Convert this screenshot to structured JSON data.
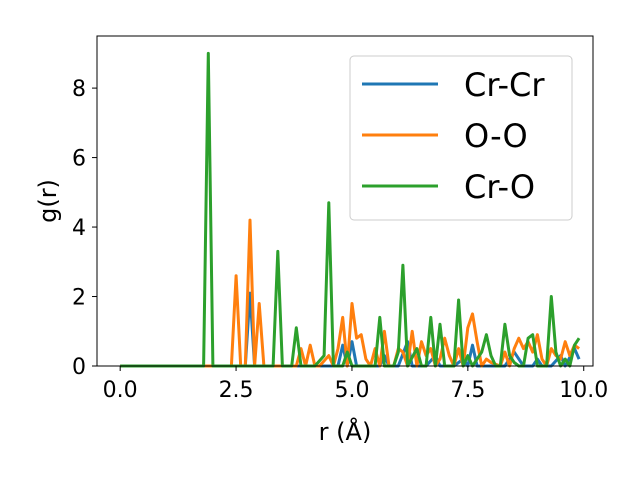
{
  "chart_data": {
    "type": "line",
    "xlabel": "r (Å)",
    "ylabel": "g(r)",
    "xlim": [
      -0.5,
      10.2
    ],
    "ylim": [
      0,
      9.5
    ],
    "xticks": [
      {
        "value": 0.0,
        "label": "0.0"
      },
      {
        "value": 2.5,
        "label": "2.5"
      },
      {
        "value": 5.0,
        "label": "5.0"
      },
      {
        "value": 7.5,
        "label": "7.5"
      },
      {
        "value": 10.0,
        "label": "10.0"
      }
    ],
    "yticks": [
      {
        "value": 0,
        "label": "0"
      },
      {
        "value": 2,
        "label": "2"
      },
      {
        "value": 4,
        "label": "4"
      },
      {
        "value": 6,
        "label": "6"
      },
      {
        "value": 8,
        "label": "8"
      }
    ],
    "grid": false,
    "legend": "top-right",
    "series": [
      {
        "name": "Cr-Cr",
        "color": "#1f77b4",
        "points": [
          [
            0.0,
            0
          ],
          [
            2.5,
            0
          ],
          [
            2.7,
            0
          ],
          [
            2.8,
            2.1
          ],
          [
            2.9,
            0
          ],
          [
            3.0,
            0
          ],
          [
            3.5,
            0
          ],
          [
            4.0,
            0
          ],
          [
            4.5,
            0
          ],
          [
            4.7,
            0
          ],
          [
            4.8,
            0.6
          ],
          [
            4.9,
            0
          ],
          [
            5.0,
            0.7
          ],
          [
            5.1,
            0
          ],
          [
            5.3,
            0
          ],
          [
            5.6,
            0
          ],
          [
            5.7,
            0.3
          ],
          [
            5.8,
            0
          ],
          [
            6.0,
            0
          ],
          [
            6.2,
            0.7
          ],
          [
            6.3,
            0
          ],
          [
            6.6,
            0
          ],
          [
            6.8,
            0.3
          ],
          [
            6.9,
            0
          ],
          [
            7.2,
            0
          ],
          [
            7.4,
            0.2
          ],
          [
            7.5,
            0
          ],
          [
            7.6,
            0.6
          ],
          [
            7.7,
            0
          ],
          [
            8.0,
            0
          ],
          [
            8.3,
            0
          ],
          [
            8.5,
            0.4
          ],
          [
            8.7,
            0
          ],
          [
            8.9,
            0
          ],
          [
            9.0,
            0.2
          ],
          [
            9.1,
            0
          ],
          [
            9.3,
            0
          ],
          [
            9.5,
            0.3
          ],
          [
            9.6,
            0
          ],
          [
            9.8,
            0.5
          ],
          [
            9.9,
            0.2
          ]
        ]
      },
      {
        "name": "O-O",
        "color": "#ff7f0e",
        "points": [
          [
            0.0,
            0
          ],
          [
            2.3,
            0
          ],
          [
            2.4,
            0
          ],
          [
            2.5,
            2.6
          ],
          [
            2.6,
            0
          ],
          [
            2.7,
            0
          ],
          [
            2.8,
            4.2
          ],
          [
            2.9,
            0
          ],
          [
            3.0,
            1.8
          ],
          [
            3.1,
            0
          ],
          [
            3.5,
            0
          ],
          [
            3.8,
            0
          ],
          [
            3.9,
            0.5
          ],
          [
            4.0,
            0
          ],
          [
            4.1,
            0.6
          ],
          [
            4.2,
            0
          ],
          [
            4.3,
            0
          ],
          [
            4.5,
            0.3
          ],
          [
            4.6,
            0
          ],
          [
            4.7,
            0.5
          ],
          [
            4.8,
            1.4
          ],
          [
            4.9,
            0
          ],
          [
            5.0,
            1.8
          ],
          [
            5.1,
            0.8
          ],
          [
            5.2,
            0.9
          ],
          [
            5.3,
            0.2
          ],
          [
            5.4,
            0
          ],
          [
            5.5,
            0.5
          ],
          [
            5.6,
            0
          ],
          [
            5.7,
            1.0
          ],
          [
            5.8,
            0
          ],
          [
            5.9,
            0
          ],
          [
            6.0,
            0.5
          ],
          [
            6.1,
            0.4
          ],
          [
            6.2,
            0
          ],
          [
            6.3,
            1.0
          ],
          [
            6.4,
            0
          ],
          [
            6.5,
            0.7
          ],
          [
            6.6,
            0.3
          ],
          [
            6.7,
            0.5
          ],
          [
            6.8,
            0
          ],
          [
            6.9,
            0.2
          ],
          [
            7.0,
            0.8
          ],
          [
            7.1,
            0.3
          ],
          [
            7.2,
            0
          ],
          [
            7.3,
            0.5
          ],
          [
            7.4,
            0
          ],
          [
            7.5,
            1.1
          ],
          [
            7.6,
            1.5
          ],
          [
            7.7,
            0.7
          ],
          [
            7.8,
            0
          ],
          [
            7.9,
            0.2
          ],
          [
            8.0,
            0.1
          ],
          [
            8.2,
            0
          ],
          [
            8.3,
            0.4
          ],
          [
            8.4,
            0
          ],
          [
            8.5,
            0.5
          ],
          [
            8.6,
            0.8
          ],
          [
            8.7,
            0.5
          ],
          [
            8.8,
            0.7
          ],
          [
            8.9,
            0.4
          ],
          [
            9.0,
            0.9
          ],
          [
            9.1,
            0.2
          ],
          [
            9.2,
            0
          ],
          [
            9.3,
            0.5
          ],
          [
            9.4,
            0.3
          ],
          [
            9.5,
            0.2
          ],
          [
            9.6,
            0.7
          ],
          [
            9.7,
            0.3
          ],
          [
            9.8,
            0.6
          ],
          [
            9.9,
            0.5
          ]
        ]
      },
      {
        "name": "Cr-O",
        "color": "#2ca02c",
        "points": [
          [
            0.0,
            0
          ],
          [
            1.8,
            0
          ],
          [
            1.9,
            9.0
          ],
          [
            2.0,
            0
          ],
          [
            2.5,
            0
          ],
          [
            3.2,
            0
          ],
          [
            3.3,
            0
          ],
          [
            3.4,
            3.3
          ],
          [
            3.5,
            0
          ],
          [
            3.7,
            0
          ],
          [
            3.8,
            1.1
          ],
          [
            3.9,
            0
          ],
          [
            4.2,
            0
          ],
          [
            4.4,
            0.3
          ],
          [
            4.5,
            4.7
          ],
          [
            4.6,
            0
          ],
          [
            4.8,
            0
          ],
          [
            4.9,
            0.4
          ],
          [
            5.0,
            0
          ],
          [
            5.3,
            0
          ],
          [
            5.5,
            0
          ],
          [
            5.6,
            1.4
          ],
          [
            5.7,
            0
          ],
          [
            5.9,
            0
          ],
          [
            6.0,
            0.4
          ],
          [
            6.1,
            2.9
          ],
          [
            6.2,
            0
          ],
          [
            6.4,
            0.5
          ],
          [
            6.5,
            0
          ],
          [
            6.6,
            0
          ],
          [
            6.7,
            1.4
          ],
          [
            6.8,
            0
          ],
          [
            6.9,
            1.2
          ],
          [
            7.0,
            0
          ],
          [
            7.2,
            0
          ],
          [
            7.3,
            1.9
          ],
          [
            7.4,
            0
          ],
          [
            7.5,
            0.3
          ],
          [
            7.6,
            0
          ],
          [
            7.8,
            0.4
          ],
          [
            7.9,
            0.9
          ],
          [
            8.0,
            0.3
          ],
          [
            8.1,
            0
          ],
          [
            8.2,
            0
          ],
          [
            8.3,
            1.2
          ],
          [
            8.4,
            0.3
          ],
          [
            8.5,
            0.1
          ],
          [
            8.6,
            0
          ],
          [
            8.7,
            0
          ],
          [
            8.8,
            0.8
          ],
          [
            8.9,
            0.9
          ],
          [
            9.0,
            0
          ],
          [
            9.2,
            0
          ],
          [
            9.3,
            2.0
          ],
          [
            9.4,
            0.4
          ],
          [
            9.5,
            0
          ],
          [
            9.6,
            0.2
          ],
          [
            9.7,
            0
          ],
          [
            9.8,
            0.6
          ],
          [
            9.9,
            0.8
          ]
        ]
      }
    ]
  }
}
